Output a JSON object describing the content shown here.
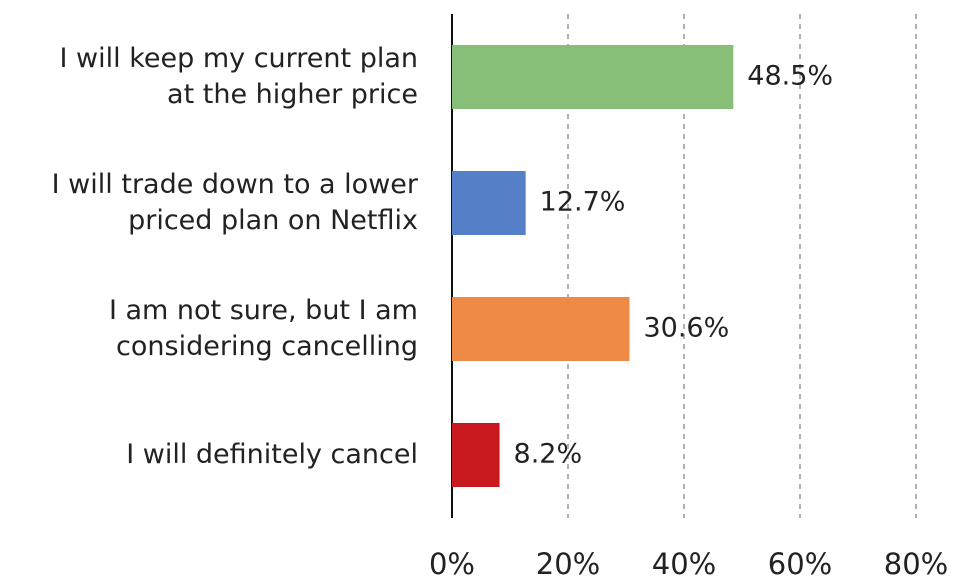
{
  "chart_data": {
    "type": "bar",
    "orientation": "horizontal",
    "categories": [
      [
        "I will keep my current plan",
        "at the higher price"
      ],
      [
        "I will trade down to a lower",
        "priced plan on Netflix"
      ],
      [
        "I am not sure, but I am",
        "considering cancelling"
      ],
      [
        "I will definitely cancel"
      ]
    ],
    "values": [
      48.5,
      12.7,
      30.6,
      8.2
    ],
    "value_labels": [
      "48.5%",
      "12.7%",
      "30.6%",
      "8.2%"
    ],
    "colors": [
      "#88bf78",
      "#5580c8",
      "#ee8a45",
      "#c8191e"
    ],
    "xlim": [
      0,
      80
    ],
    "xticks": [
      {
        "value": 0,
        "label": "0%"
      },
      {
        "value": 20,
        "label": "20%"
      },
      {
        "value": 40,
        "label": "40%"
      },
      {
        "value": 60,
        "label": "60%"
      },
      {
        "value": 80,
        "label": "80%"
      }
    ],
    "grid": true
  }
}
